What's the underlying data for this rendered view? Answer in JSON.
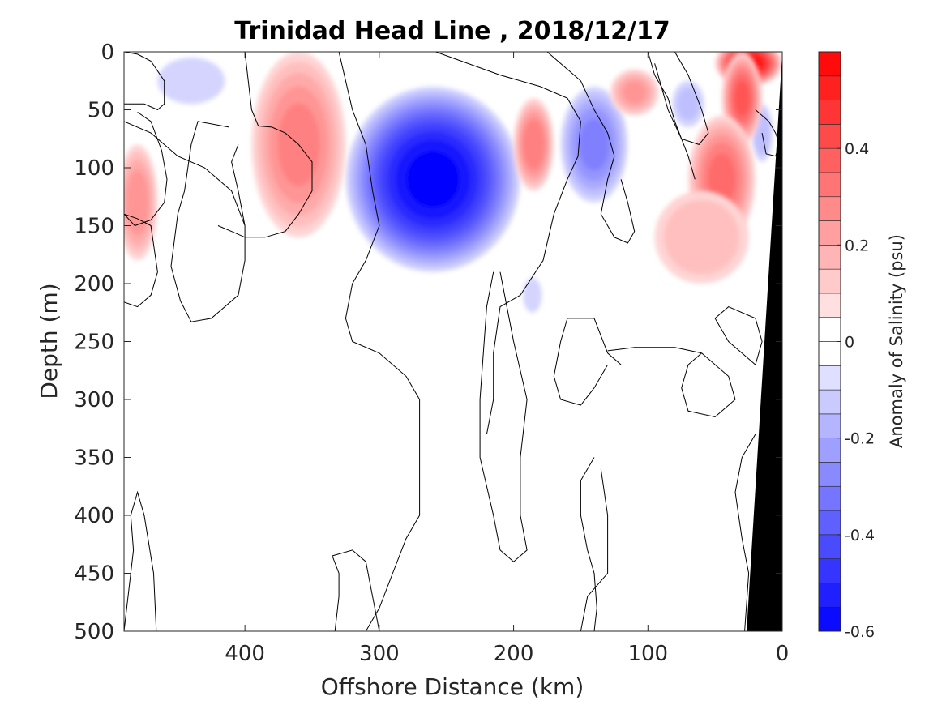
{
  "chart_data": {
    "type": "heatmap",
    "title": "Trinidad Head Line , 2018/12/17",
    "xlabel": "Offshore Distance (km)",
    "ylabel": "Depth (m)",
    "xlim": [
      490,
      0
    ],
    "ylim": [
      0,
      500
    ],
    "x_ticks": [
      "400",
      "300",
      "200",
      "100",
      "0"
    ],
    "y_ticks": [
      "0",
      "50",
      "100",
      "150",
      "200",
      "250",
      "300",
      "350",
      "400",
      "450",
      "500"
    ],
    "colorbar": {
      "label": "Anomaly of Salinity (psu)",
      "range": [
        -0.6,
        0.6
      ],
      "ticks": [
        "0.4",
        "0.2",
        "0",
        "-0.2",
        "-0.4",
        "-0.6"
      ],
      "low_color": "#0000ff",
      "high_color": "#ff0000"
    },
    "features": [
      {
        "shape": "blob",
        "x": 260,
        "depth": 110,
        "anomaly": -0.55,
        "rx_km": 65,
        "ry_m": 80
      },
      {
        "shape": "blob",
        "x": 140,
        "depth": 80,
        "anomaly": -0.25,
        "rx_km": 25,
        "ry_m": 50
      },
      {
        "shape": "blob",
        "x": 440,
        "depth": 25,
        "anomaly": -0.07,
        "rx_km": 25,
        "ry_m": 20
      },
      {
        "shape": "blob",
        "x": 70,
        "depth": 45,
        "anomaly": -0.1,
        "rx_km": 12,
        "ry_m": 20
      },
      {
        "shape": "blob",
        "x": 15,
        "depth": 70,
        "anomaly": -0.12,
        "rx_km": 8,
        "ry_m": 25
      },
      {
        "shape": "blob",
        "x": 186,
        "depth": 210,
        "anomaly": -0.06,
        "rx_km": 7,
        "ry_m": 15
      },
      {
        "shape": "blob",
        "x": 360,
        "depth": 80,
        "anomaly": 0.25,
        "rx_km": 35,
        "ry_m": 80
      },
      {
        "shape": "blob",
        "x": 480,
        "depth": 130,
        "anomaly": 0.22,
        "rx_km": 15,
        "ry_m": 50
      },
      {
        "shape": "blob",
        "x": 185,
        "depth": 80,
        "anomaly": 0.28,
        "rx_km": 15,
        "ry_m": 40
      },
      {
        "shape": "blob",
        "x": 110,
        "depth": 35,
        "anomaly": 0.2,
        "rx_km": 18,
        "ry_m": 20
      },
      {
        "shape": "blob",
        "x": 25,
        "depth": 10,
        "anomaly": 0.55,
        "rx_km": 25,
        "ry_m": 20
      },
      {
        "shape": "blob",
        "x": 30,
        "depth": 40,
        "anomaly": 0.35,
        "rx_km": 15,
        "ry_m": 40
      },
      {
        "shape": "blob",
        "x": 45,
        "depth": 110,
        "anomaly": 0.3,
        "rx_km": 25,
        "ry_m": 55
      },
      {
        "shape": "blob",
        "x": 60,
        "depth": 160,
        "anomaly": 0.14,
        "rx_km": 35,
        "ry_m": 40
      }
    ],
    "zero_contours": [
      [
        [
          490,
          45
        ],
        [
          475,
          45
        ],
        [
          465,
          50
        ],
        [
          460,
          45
        ],
        [
          460,
          25
        ],
        [
          470,
          8
        ],
        [
          480,
          2
        ],
        [
          490,
          0
        ]
      ],
      [
        [
          490,
          140
        ],
        [
          480,
          144
        ],
        [
          470,
          150
        ],
        [
          465,
          190
        ],
        [
          470,
          210
        ],
        [
          480,
          220
        ],
        [
          490,
          216
        ]
      ],
      [
        [
          490,
          500
        ],
        [
          483,
          430
        ],
        [
          485,
          400
        ],
        [
          480,
          380
        ],
        [
          475,
          400
        ],
        [
          468,
          450
        ],
        [
          466,
          500
        ]
      ],
      [
        [
          480,
          52
        ],
        [
          470,
          60
        ],
        [
          462,
          85
        ],
        [
          458,
          110
        ],
        [
          460,
          130
        ],
        [
          470,
          145
        ],
        [
          482,
          150
        ],
        [
          490,
          140
        ]
      ],
      [
        [
          412,
          65
        ],
        [
          435,
          60
        ],
        [
          440,
          80
        ],
        [
          445,
          120
        ],
        [
          450,
          140
        ],
        [
          455,
          185
        ],
        [
          448,
          215
        ],
        [
          440,
          233
        ],
        [
          425,
          230
        ],
        [
          405,
          210
        ],
        [
          400,
          180
        ],
        [
          400,
          150
        ],
        [
          405,
          120
        ],
        [
          410,
          95
        ],
        [
          405,
          80
        ]
      ],
      [
        [
          490,
          60
        ],
        [
          470,
          70
        ],
        [
          450,
          90
        ],
        [
          430,
          100
        ],
        [
          410,
          120
        ],
        [
          400,
          150
        ]
      ],
      [
        [
          400,
          0
        ],
        [
          395,
          50
        ],
        [
          390,
          64
        ],
        [
          380,
          65
        ],
        [
          370,
          70
        ],
        [
          360,
          80
        ],
        [
          350,
          95
        ],
        [
          350,
          120
        ],
        [
          360,
          140
        ],
        [
          370,
          155
        ],
        [
          385,
          160
        ],
        [
          400,
          160
        ],
        [
          410,
          155
        ],
        [
          420,
          150
        ]
      ],
      [
        [
          330,
          0
        ],
        [
          320,
          50
        ],
        [
          310,
          80
        ],
        [
          305,
          120
        ],
        [
          300,
          150
        ],
        [
          310,
          180
        ],
        [
          320,
          200
        ],
        [
          325,
          230
        ],
        [
          320,
          250
        ],
        [
          300,
          260
        ],
        [
          280,
          280
        ],
        [
          270,
          300
        ],
        [
          270,
          400
        ],
        [
          280,
          420
        ],
        [
          290,
          450
        ],
        [
          300,
          480
        ],
        [
          310,
          500
        ]
      ],
      [
        [
          333,
          500
        ],
        [
          330,
          470
        ],
        [
          330,
          450
        ],
        [
          335,
          435
        ],
        [
          320,
          430
        ],
        [
          310,
          440
        ],
        [
          305,
          470
        ],
        [
          300,
          500
        ]
      ],
      [
        [
          258,
          0
        ],
        [
          210,
          20
        ],
        [
          180,
          30
        ],
        [
          160,
          40
        ],
        [
          150,
          60
        ],
        [
          152,
          90
        ],
        [
          160,
          110
        ],
        [
          170,
          140
        ],
        [
          178,
          180
        ],
        [
          195,
          210
        ],
        [
          210,
          220
        ],
        [
          215,
          260
        ],
        [
          215,
          300
        ],
        [
          220,
          330
        ]
      ],
      [
        [
          215,
          190
        ],
        [
          220,
          220
        ],
        [
          225,
          300
        ],
        [
          225,
          350
        ],
        [
          215,
          400
        ],
        [
          210,
          430
        ],
        [
          200,
          440
        ],
        [
          190,
          430
        ],
        [
          195,
          400
        ],
        [
          195,
          350
        ],
        [
          190,
          300
        ],
        [
          200,
          250
        ],
        [
          205,
          220
        ],
        [
          210,
          190
        ]
      ],
      [
        [
          140,
          350
        ],
        [
          150,
          370
        ],
        [
          150,
          400
        ],
        [
          145,
          430
        ],
        [
          140,
          450
        ],
        [
          138,
          480
        ],
        [
          140,
          500
        ],
        [
          150,
          500
        ],
        [
          145,
          470
        ],
        [
          130,
          450
        ],
        [
          130,
          400
        ],
        [
          135,
          360
        ]
      ],
      [
        [
          175,
          0
        ],
        [
          160,
          15
        ],
        [
          150,
          25
        ],
        [
          140,
          50
        ],
        [
          130,
          70
        ],
        [
          125,
          90
        ],
        [
          130,
          110
        ],
        [
          135,
          140
        ],
        [
          125,
          160
        ],
        [
          115,
          165
        ],
        [
          110,
          155
        ],
        [
          115,
          130
        ],
        [
          120,
          110
        ]
      ],
      [
        [
          120,
          270
        ],
        [
          130,
          260
        ],
        [
          140,
          230
        ],
        [
          160,
          230
        ],
        [
          165,
          250
        ],
        [
          170,
          280
        ],
        [
          165,
          300
        ],
        [
          150,
          305
        ],
        [
          140,
          290
        ],
        [
          130,
          270
        ]
      ],
      [
        [
          60,
          260
        ],
        [
          80,
          255
        ],
        [
          110,
          255
        ],
        [
          130,
          258
        ]
      ],
      [
        [
          60,
          260
        ],
        [
          70,
          270
        ],
        [
          75,
          290
        ],
        [
          70,
          310
        ],
        [
          50,
          315
        ],
        [
          35,
          300
        ],
        [
          40,
          280
        ],
        [
          60,
          260
        ]
      ],
      [
        [
          50,
          230
        ],
        [
          40,
          250
        ],
        [
          30,
          260
        ],
        [
          20,
          270
        ],
        [
          15,
          250
        ],
        [
          20,
          230
        ],
        [
          40,
          220
        ],
        [
          50,
          230
        ]
      ],
      [
        [
          20,
          330
        ],
        [
          30,
          350
        ],
        [
          35,
          380
        ],
        [
          30,
          420
        ],
        [
          25,
          450
        ],
        [
          28,
          500
        ]
      ],
      [
        [
          80,
          0
        ],
        [
          70,
          20
        ],
        [
          60,
          50
        ],
        [
          55,
          70
        ],
        [
          62,
          80
        ],
        [
          75,
          75
        ],
        [
          85,
          50
        ],
        [
          90,
          30
        ],
        [
          95,
          10
        ]
      ],
      [
        [
          100,
          0
        ],
        [
          95,
          20
        ],
        [
          85,
          40
        ],
        [
          80,
          60
        ],
        [
          70,
          90
        ],
        [
          65,
          110
        ]
      ],
      [
        [
          20,
          50
        ],
        [
          10,
          60
        ],
        [
          5,
          70
        ],
        [
          2,
          80
        ],
        [
          5,
          90
        ],
        [
          12,
          88
        ],
        [
          15,
          70
        ]
      ]
    ]
  }
}
